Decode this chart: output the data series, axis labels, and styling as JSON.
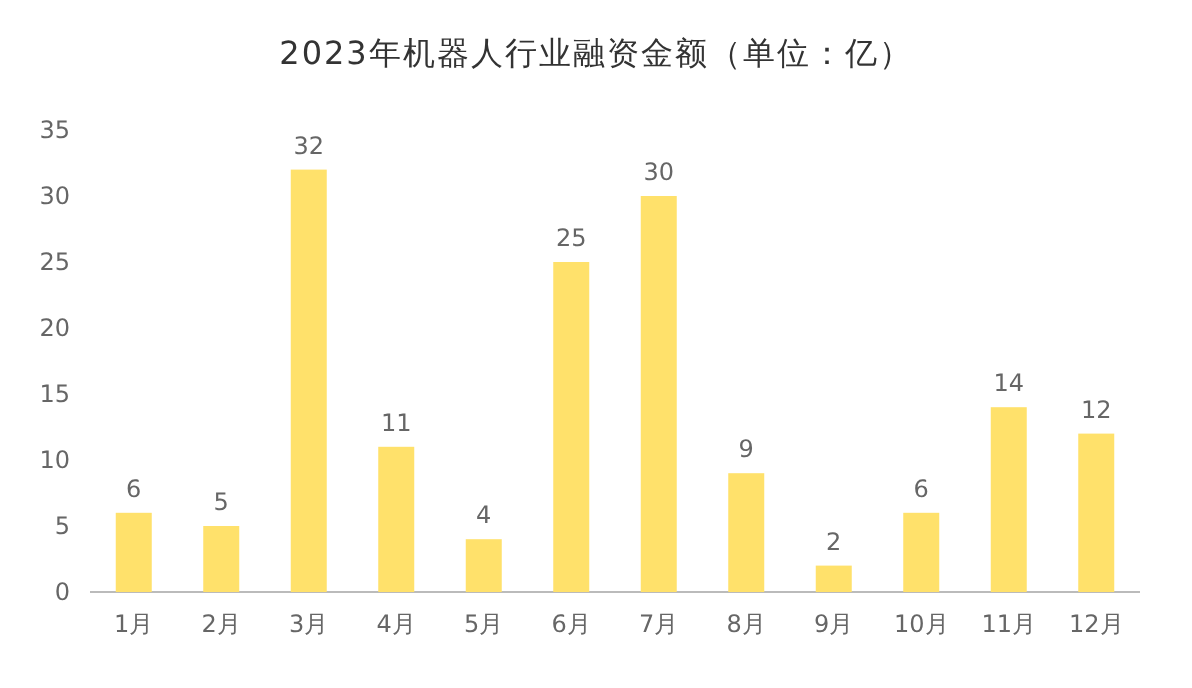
{
  "chart_data": {
    "type": "bar",
    "title": "2023年机器人行业融资金额（单位：亿）",
    "categories": [
      "1月",
      "2月",
      "3月",
      "4月",
      "5月",
      "6月",
      "7月",
      "8月",
      "9月",
      "10月",
      "11月",
      "12月"
    ],
    "values": [
      6,
      5,
      32,
      11,
      4,
      25,
      30,
      9,
      2,
      6,
      14,
      12
    ],
    "color": "#ffe16b",
    "ylim": [
      0,
      35
    ],
    "yticks": [
      0,
      5,
      10,
      15,
      20,
      25,
      30,
      35
    ],
    "data_labels": true,
    "grid": false
  }
}
